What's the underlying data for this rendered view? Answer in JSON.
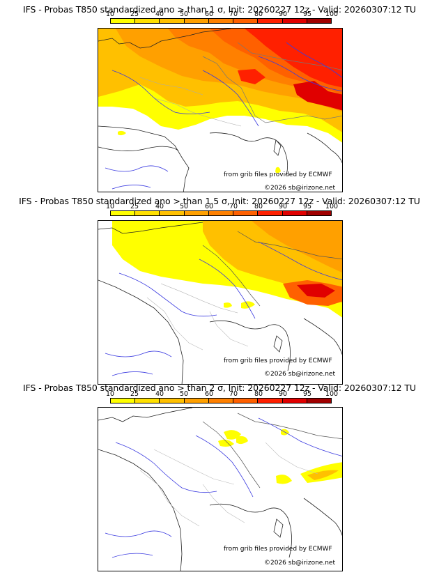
{
  "panels": [
    {
      "title": "IFS - Probas T850  standardized ano > than 1 σ, Init: 20260227 12z - Valid: 20260307:12 TU"
    },
    {
      "title": "IFS - Probas T850  standardized ano > than 1.5 σ, Init: 20260227 12z - Valid: 20260307:12 TU"
    },
    {
      "title": "IFS - Probas T850  standardized ano > than 2 σ, Init: 20260227 12z - Valid: 20260307:12 TU"
    }
  ],
  "colorbar": {
    "labels": [
      "10",
      "25",
      "40",
      "50",
      "60",
      "70",
      "80",
      "90",
      "95",
      "100"
    ],
    "colors": [
      "#ffff00",
      "#ffe000",
      "#ffc000",
      "#ffa000",
      "#ff8000",
      "#ff6000",
      "#ff2000",
      "#e00000",
      "#a00000",
      "#600000"
    ]
  },
  "credits": {
    "source": "from grib files provided by ECMWF",
    "copyright": "©2026 sb@irizone.net"
  }
}
